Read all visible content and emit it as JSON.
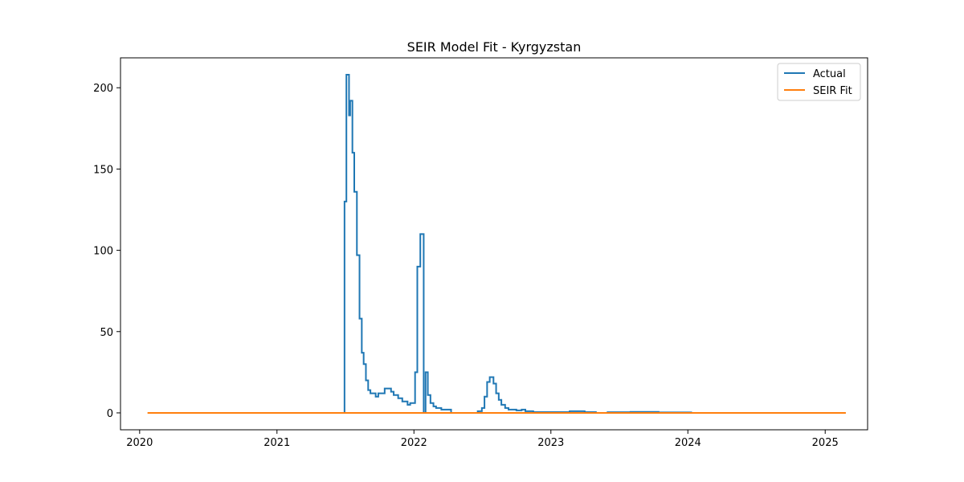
{
  "chart_data": {
    "type": "line",
    "title": "SEIR Model Fit - Kyrgyzstan",
    "xlabel": "",
    "ylabel": "",
    "x_ticks": [
      "2020",
      "2021",
      "2022",
      "2023",
      "2024",
      "2025"
    ],
    "y_ticks": [
      0,
      50,
      100,
      150,
      200
    ],
    "xlim": [
      "2019-11-11",
      "2025-04-24"
    ],
    "ylim": [
      -10.4,
      218.4
    ],
    "grid": false,
    "legend_position": "top-right",
    "series": [
      {
        "name": "Actual",
        "color": "#1f77b4",
        "step": true,
        "points": [
          [
            "2021-06-30",
            0
          ],
          [
            "2021-06-30",
            130
          ],
          [
            "2021-07-05",
            130
          ],
          [
            "2021-07-05",
            208
          ],
          [
            "2021-07-12",
            208
          ],
          [
            "2021-07-12",
            183
          ],
          [
            "2021-07-15",
            183
          ],
          [
            "2021-07-15",
            192
          ],
          [
            "2021-07-21",
            192
          ],
          [
            "2021-07-21",
            160
          ],
          [
            "2021-07-26",
            160
          ],
          [
            "2021-07-26",
            136
          ],
          [
            "2021-08-02",
            136
          ],
          [
            "2021-08-02",
            97
          ],
          [
            "2021-08-09",
            97
          ],
          [
            "2021-08-09",
            58
          ],
          [
            "2021-08-15",
            58
          ],
          [
            "2021-08-15",
            37
          ],
          [
            "2021-08-20",
            37
          ],
          [
            "2021-08-20",
            30
          ],
          [
            "2021-08-26",
            30
          ],
          [
            "2021-08-26",
            20
          ],
          [
            "2021-09-01",
            20
          ],
          [
            "2021-09-01",
            14
          ],
          [
            "2021-09-07",
            14
          ],
          [
            "2021-09-07",
            12
          ],
          [
            "2021-09-21",
            12
          ],
          [
            "2021-09-21",
            10
          ],
          [
            "2021-09-28",
            10
          ],
          [
            "2021-09-28",
            12
          ],
          [
            "2021-10-15",
            12
          ],
          [
            "2021-10-15",
            15
          ],
          [
            "2021-11-01",
            15
          ],
          [
            "2021-11-01",
            13
          ],
          [
            "2021-11-08",
            13
          ],
          [
            "2021-11-08",
            11
          ],
          [
            "2021-11-20",
            11
          ],
          [
            "2021-11-20",
            9
          ],
          [
            "2021-12-01",
            9
          ],
          [
            "2021-12-01",
            7
          ],
          [
            "2021-12-15",
            7
          ],
          [
            "2021-12-15",
            5
          ],
          [
            "2021-12-22",
            5
          ],
          [
            "2021-12-22",
            6
          ],
          [
            "2022-01-04",
            6
          ],
          [
            "2022-01-04",
            25
          ],
          [
            "2022-01-10",
            25
          ],
          [
            "2022-01-10",
            90
          ],
          [
            "2022-01-18",
            90
          ],
          [
            "2022-01-18",
            110
          ],
          [
            "2022-01-27",
            110
          ],
          [
            "2022-01-27",
            0
          ],
          [
            "2022-02-01",
            0
          ],
          [
            "2022-02-01",
            25
          ],
          [
            "2022-02-07",
            25
          ],
          [
            "2022-02-07",
            11
          ],
          [
            "2022-02-14",
            11
          ],
          [
            "2022-02-14",
            6
          ],
          [
            "2022-02-22",
            6
          ],
          [
            "2022-02-22",
            4
          ],
          [
            "2022-03-01",
            4
          ],
          [
            "2022-03-01",
            3
          ],
          [
            "2022-03-15",
            3
          ],
          [
            "2022-03-15",
            2
          ],
          [
            "2022-04-10",
            2
          ],
          [
            "2022-04-10",
            0
          ],
          [
            "2022-06-20",
            0
          ],
          [
            "2022-06-20",
            1
          ],
          [
            "2022-07-01",
            1
          ],
          [
            "2022-07-01",
            3
          ],
          [
            "2022-07-08",
            3
          ],
          [
            "2022-07-08",
            10
          ],
          [
            "2022-07-15",
            10
          ],
          [
            "2022-07-15",
            19
          ],
          [
            "2022-07-22",
            19
          ],
          [
            "2022-07-22",
            22
          ],
          [
            "2022-08-01",
            22
          ],
          [
            "2022-08-01",
            18
          ],
          [
            "2022-08-08",
            18
          ],
          [
            "2022-08-08",
            12
          ],
          [
            "2022-08-15",
            12
          ],
          [
            "2022-08-15",
            8
          ],
          [
            "2022-08-22",
            8
          ],
          [
            "2022-08-22",
            5
          ],
          [
            "2022-09-01",
            5
          ],
          [
            "2022-09-01",
            3
          ],
          [
            "2022-09-10",
            3
          ],
          [
            "2022-09-10",
            2
          ],
          [
            "2022-10-01",
            2
          ],
          [
            "2022-10-01",
            1.5
          ],
          [
            "2022-10-15",
            1.5
          ],
          [
            "2022-10-15",
            2
          ],
          [
            "2022-10-25",
            2
          ],
          [
            "2022-10-25",
            1
          ],
          [
            "2022-11-15",
            1
          ],
          [
            "2022-11-15",
            0.5
          ],
          [
            "2023-02-20",
            0.5
          ],
          [
            "2023-02-20",
            1
          ],
          [
            "2023-04-01",
            1
          ],
          [
            "2023-04-01",
            0.5
          ],
          [
            "2023-05-01",
            0.5
          ],
          [
            "2023-05-01",
            0
          ],
          [
            "2023-06-01",
            0
          ],
          [
            "2023-06-01",
            0.4
          ],
          [
            "2023-08-01",
            0.4
          ],
          [
            "2023-08-01",
            0.6
          ],
          [
            "2023-10-15",
            0.6
          ],
          [
            "2023-10-15",
            0.3
          ],
          [
            "2024-01-10",
            0.3
          ],
          [
            "2024-01-10",
            0
          ],
          [
            "2024-01-25",
            0
          ]
        ]
      },
      {
        "name": "SEIR Fit",
        "color": "#ff7f0e",
        "step": false,
        "points": [
          [
            "2020-01-22",
            0
          ],
          [
            "2025-02-25",
            0
          ]
        ]
      }
    ]
  }
}
